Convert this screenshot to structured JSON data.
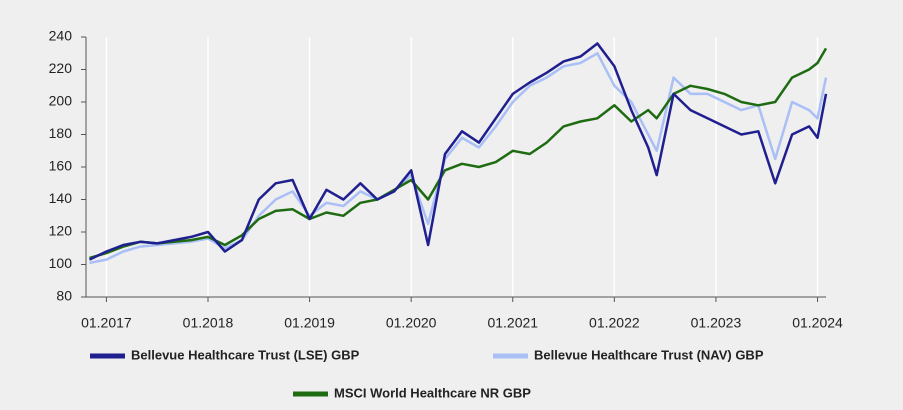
{
  "chart_data": {
    "type": "line",
    "x": [
      "11.2016",
      "01.2017",
      "03.2017",
      "05.2017",
      "07.2017",
      "09.2017",
      "11.2017",
      "01.2018",
      "03.2018",
      "05.2018",
      "07.2018",
      "09.2018",
      "11.2018",
      "01.2019",
      "03.2019",
      "05.2019",
      "07.2019",
      "09.2019",
      "11.2019",
      "01.2020",
      "03.2020",
      "05.2020",
      "07.2020",
      "09.2020",
      "11.2020",
      "01.2021",
      "03.2021",
      "05.2021",
      "07.2021",
      "09.2021",
      "11.2021",
      "01.2022",
      "03.2022",
      "05.2022",
      "06.2022",
      "08.2022",
      "10.2022",
      "12.2022",
      "02.2023",
      "04.2023",
      "06.2023",
      "08.2023",
      "10.2023",
      "12.2023",
      "01.2024",
      "02.2024"
    ],
    "series": [
      {
        "name": "Bellevue Healthcare Trust (LSE) GBP",
        "color": "#1f1f8f",
        "values": [
          103,
          108,
          112,
          114,
          113,
          115,
          117,
          120,
          108,
          115,
          140,
          150,
          152,
          128,
          146,
          140,
          150,
          140,
          145,
          158,
          112,
          168,
          182,
          175,
          190,
          205,
          212,
          218,
          225,
          228,
          236,
          222,
          195,
          172,
          155,
          205,
          195,
          190,
          185,
          180,
          182,
          150,
          180,
          185,
          178,
          205
        ]
      },
      {
        "name": "Bellevue Healthcare Trust (NAV) GBP",
        "color": "#a9bff5",
        "values": [
          101,
          103,
          108,
          111,
          112,
          113,
          114,
          116,
          110,
          115,
          130,
          140,
          145,
          130,
          138,
          136,
          145,
          140,
          145,
          155,
          125,
          165,
          178,
          172,
          185,
          200,
          210,
          215,
          222,
          224,
          230,
          210,
          200,
          180,
          170,
          215,
          205,
          205,
          200,
          195,
          198,
          165,
          200,
          195,
          190,
          215
        ]
      },
      {
        "name": "MSCI World Healthcare NR GBP",
        "color": "#1e6b12",
        "values": [
          104,
          107,
          111,
          114,
          113,
          114,
          115,
          117,
          112,
          118,
          128,
          133,
          134,
          128,
          132,
          130,
          138,
          140,
          146,
          152,
          140,
          158,
          162,
          160,
          163,
          170,
          168,
          175,
          185,
          188,
          190,
          198,
          188,
          195,
          190,
          205,
          210,
          208,
          205,
          200,
          198,
          200,
          215,
          220,
          224,
          233
        ]
      }
    ],
    "xlim": [
      "10.2016",
      "02.2024"
    ],
    "xticks": [
      "01.2017",
      "01.2018",
      "01.2019",
      "01.2020",
      "01.2021",
      "01.2022",
      "01.2023",
      "01.2024"
    ],
    "ylim": [
      80,
      240
    ],
    "yticks": [
      80,
      100,
      120,
      140,
      160,
      180,
      200,
      220,
      240
    ],
    "grid": "x"
  }
}
